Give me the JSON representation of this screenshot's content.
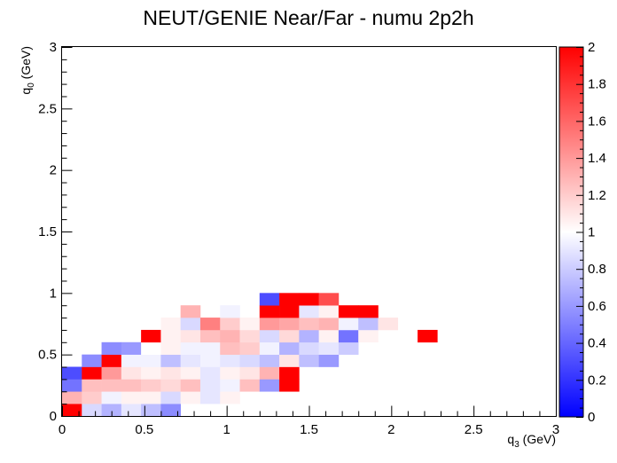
{
  "chart_data": {
    "type": "heatmap",
    "title": "NEUT/GENIE Near/Far - numu 2p2h",
    "xlabel": {
      "main": "q",
      "sub": "3",
      "unit": " (GeV)"
    },
    "ylabel": {
      "main": "q",
      "sub": "0",
      "unit": " (GeV)"
    },
    "xlim": [
      0,
      3
    ],
    "ylim": [
      0,
      3
    ],
    "zlim": [
      0,
      2
    ],
    "x_bin_width": 0.12,
    "y_bin_width": 0.1,
    "x_ticks": [
      0,
      0.5,
      1,
      1.5,
      2,
      2.5,
      3
    ],
    "x_tick_labels": [
      "0",
      "0.5",
      "1",
      "1.5",
      "2",
      "2.5",
      "3"
    ],
    "y_ticks": [
      0,
      0.5,
      1,
      1.5,
      2,
      2.5,
      3
    ],
    "y_tick_labels": [
      "0",
      "0.5",
      "1",
      "1.5",
      "2",
      "2.5",
      "3"
    ],
    "z_ticks": [
      0,
      0.2,
      0.4,
      0.6,
      0.8,
      1,
      1.2,
      1.4,
      1.6,
      1.8,
      2
    ],
    "z_tick_labels": [
      "0",
      "0.2",
      "0.4",
      "0.6",
      "0.8",
      "1",
      "1.2",
      "1.4",
      "1.6",
      "1.8",
      "2"
    ],
    "colormap": {
      "low": "#0000ff",
      "mid": "#ffffff",
      "high": "#ff0000"
    },
    "grid": false,
    "legend": "colorbar-right",
    "cells": [
      [
        0,
        0,
        2.0
      ],
      [
        1,
        0,
        0.85
      ],
      [
        2,
        0,
        0.7
      ],
      [
        3,
        0,
        0.9
      ],
      [
        4,
        0,
        0.75
      ],
      [
        5,
        0,
        0.55
      ],
      [
        0,
        1,
        1.3
      ],
      [
        1,
        1,
        1.2
      ],
      [
        2,
        1,
        0.95
      ],
      [
        3,
        1,
        1.05
      ],
      [
        4,
        1,
        1.05
      ],
      [
        5,
        1,
        0.85
      ],
      [
        6,
        1,
        1.05
      ],
      [
        7,
        1,
        0.9
      ],
      [
        8,
        1,
        1.05
      ],
      [
        0,
        2,
        0.45
      ],
      [
        1,
        2,
        1.25
      ],
      [
        2,
        2,
        1.25
      ],
      [
        3,
        2,
        1.25
      ],
      [
        4,
        2,
        1.2
      ],
      [
        5,
        2,
        1.15
      ],
      [
        6,
        2,
        1.25
      ],
      [
        7,
        2,
        0.9
      ],
      [
        8,
        2,
        0.95
      ],
      [
        9,
        2,
        1.25
      ],
      [
        10,
        2,
        0.6
      ],
      [
        11,
        2,
        2.0
      ],
      [
        0,
        3,
        0.3
      ],
      [
        1,
        3,
        2.0
      ],
      [
        2,
        3,
        1.4
      ],
      [
        3,
        3,
        1.1
      ],
      [
        4,
        3,
        1.05
      ],
      [
        5,
        3,
        1.1
      ],
      [
        6,
        3,
        1.05
      ],
      [
        7,
        3,
        0.9
      ],
      [
        8,
        3,
        1.05
      ],
      [
        9,
        3,
        1.1
      ],
      [
        10,
        3,
        1.3
      ],
      [
        11,
        3,
        2.0
      ],
      [
        1,
        4,
        0.55
      ],
      [
        2,
        4,
        2.0
      ],
      [
        3,
        4,
        0.95
      ],
      [
        4,
        4,
        0.95
      ],
      [
        5,
        4,
        0.75
      ],
      [
        6,
        4,
        0.9
      ],
      [
        7,
        4,
        0.95
      ],
      [
        8,
        4,
        0.9
      ],
      [
        9,
        4,
        0.85
      ],
      [
        10,
        4,
        0.75
      ],
      [
        11,
        4,
        1.1
      ],
      [
        12,
        4,
        0.75
      ],
      [
        13,
        4,
        0.6
      ],
      [
        2,
        5,
        0.55
      ],
      [
        3,
        5,
        0.6
      ],
      [
        4,
        5,
        1.0
      ],
      [
        5,
        5,
        1.05
      ],
      [
        6,
        5,
        0.95
      ],
      [
        7,
        5,
        0.95
      ],
      [
        8,
        5,
        1.25
      ],
      [
        9,
        5,
        1.2
      ],
      [
        10,
        5,
        0.95
      ],
      [
        11,
        5,
        0.7
      ],
      [
        12,
        5,
        0.85
      ],
      [
        13,
        5,
        0.9
      ],
      [
        14,
        5,
        0.8
      ],
      [
        4,
        6,
        2.0
      ],
      [
        5,
        6,
        1.05
      ],
      [
        6,
        6,
        1.1
      ],
      [
        7,
        6,
        1.25
      ],
      [
        8,
        6,
        1.3
      ],
      [
        9,
        6,
        1.15
      ],
      [
        10,
        6,
        0.85
      ],
      [
        11,
        6,
        1.15
      ],
      [
        12,
        6,
        0.7
      ],
      [
        13,
        6,
        1.05
      ],
      [
        14,
        6,
        0.45
      ],
      [
        15,
        6,
        1.05
      ],
      [
        18,
        6,
        2.0
      ],
      [
        5,
        7,
        1.05
      ],
      [
        6,
        7,
        0.85
      ],
      [
        7,
        7,
        1.5
      ],
      [
        8,
        7,
        1.2
      ],
      [
        9,
        7,
        1.05
      ],
      [
        10,
        7,
        1.4
      ],
      [
        11,
        7,
        1.35
      ],
      [
        12,
        7,
        1.25
      ],
      [
        13,
        7,
        1.3
      ],
      [
        14,
        7,
        0.95
      ],
      [
        15,
        7,
        0.75
      ],
      [
        16,
        7,
        1.1
      ],
      [
        6,
        8,
        1.3
      ],
      [
        8,
        8,
        0.95
      ],
      [
        10,
        8,
        2.0
      ],
      [
        11,
        8,
        2.0
      ],
      [
        12,
        8,
        0.9
      ],
      [
        13,
        8,
        1.05
      ],
      [
        14,
        8,
        2.0
      ],
      [
        15,
        8,
        2.0
      ],
      [
        10,
        9,
        0.3
      ],
      [
        11,
        9,
        2.0
      ],
      [
        12,
        9,
        2.0
      ],
      [
        13,
        9,
        1.7
      ]
    ]
  }
}
